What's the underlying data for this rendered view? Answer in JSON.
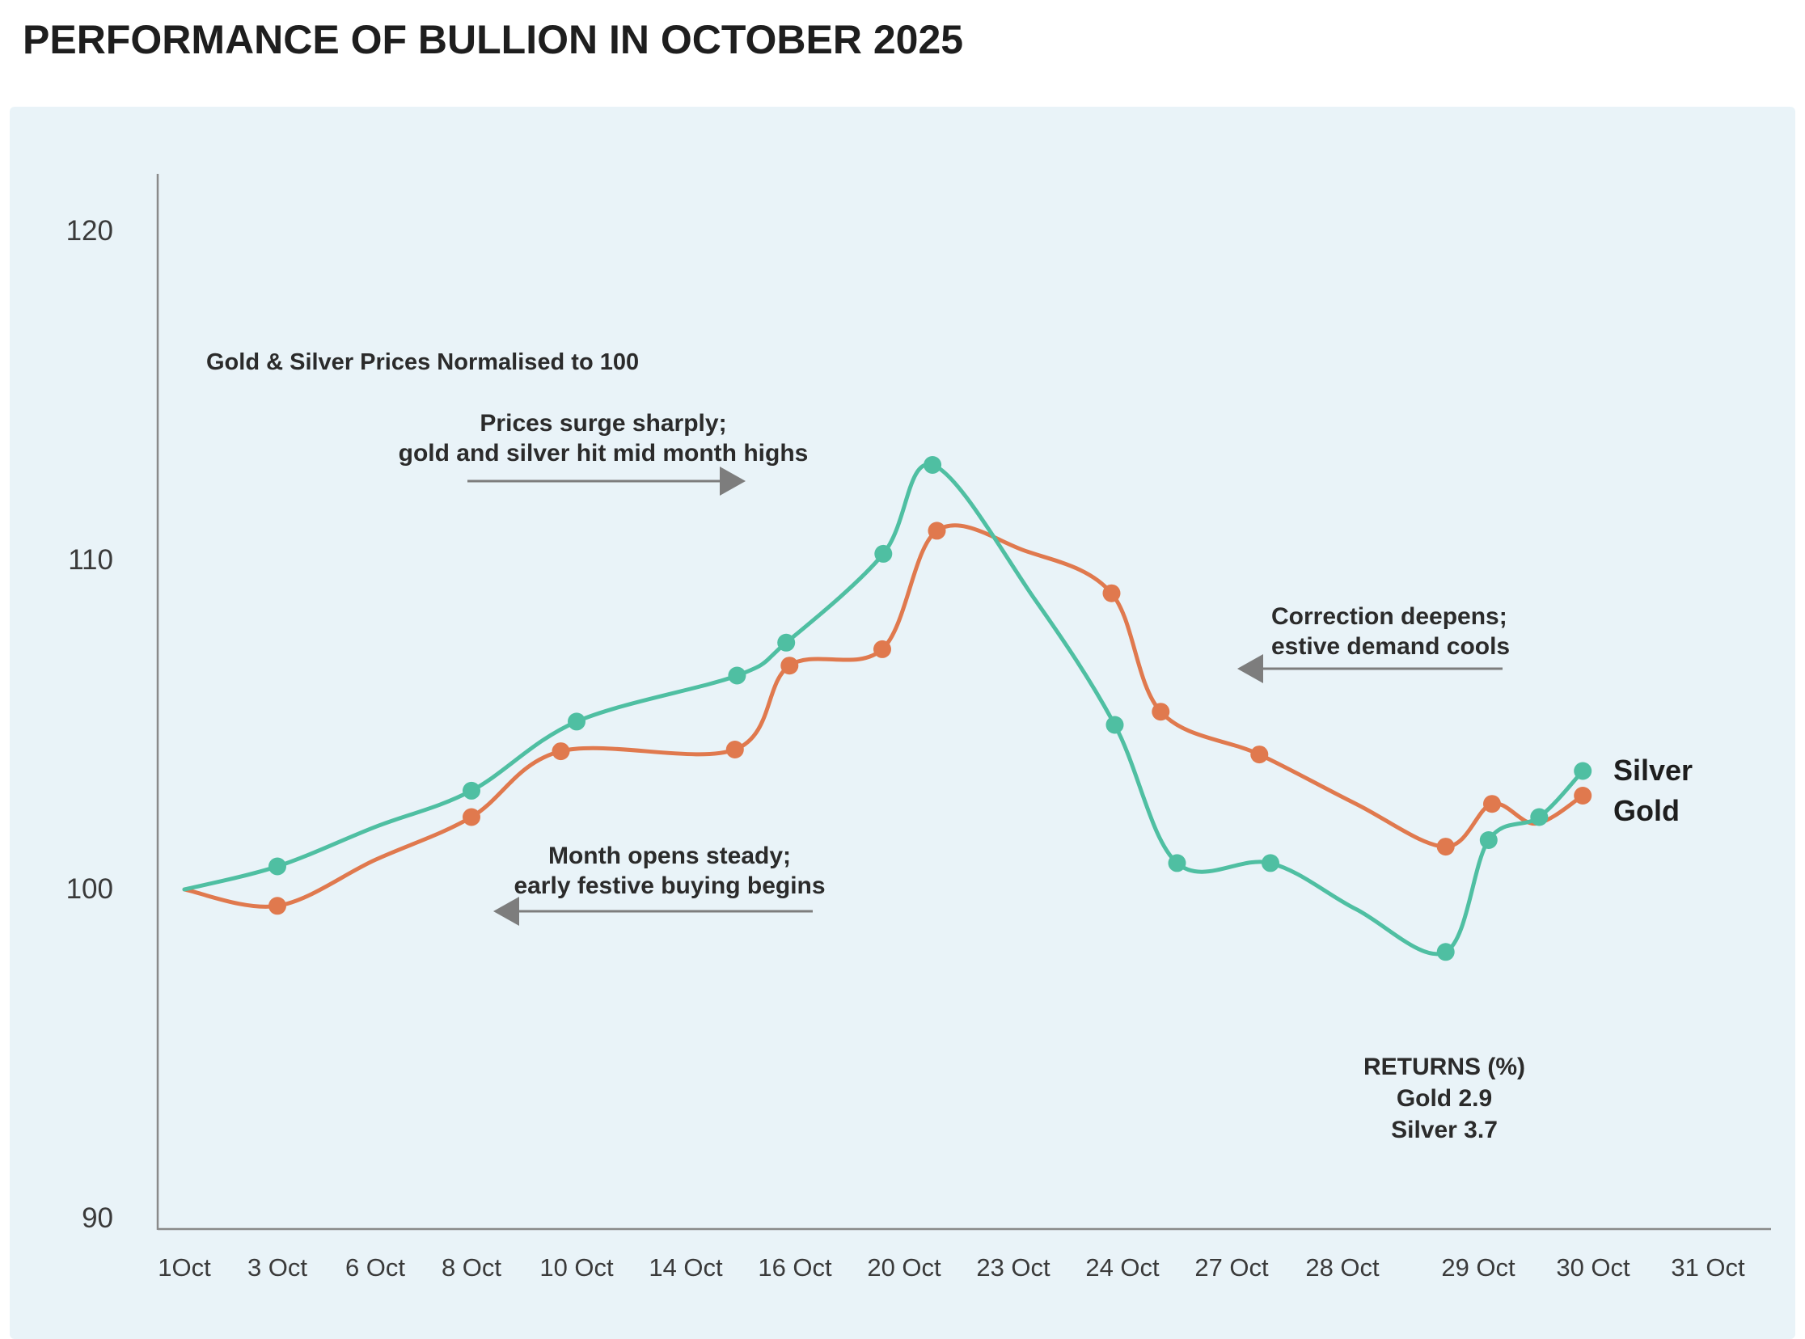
{
  "title": "PERFORMANCE OF BULLION IN OCTOBER 2025",
  "chart_data": {
    "type": "line",
    "note": "Gold & Silver Prices Normalised to 100",
    "x_unit": "category slot (0 = 1Oct ... 14 = 31 Oct); fractional slots are intra-period dates",
    "x_categories": [
      "1Oct",
      "3 Oct",
      "6 Oct",
      "8 Oct",
      "10 Oct",
      "14 Oct",
      "16 Oct",
      "20 Oct",
      "23 Oct",
      "24 Oct",
      "27 Oct",
      "28 Oct",
      "29 Oct",
      "30 Oct",
      "31 Oct"
    ],
    "y_ticks": [
      120,
      110,
      100,
      90
    ],
    "ylim": [
      89.7,
      121.5
    ],
    "grid": false,
    "legend_position": "line-end labels at right",
    "series": [
      {
        "name": "Gold",
        "color": "#e0794e",
        "return_pct": 2.9,
        "points": [
          {
            "x": 0,
            "y": 100.0,
            "marker": false
          },
          {
            "x": 1,
            "y": 99.5,
            "marker": true
          },
          {
            "x": 2,
            "y": 100.9,
            "marker": false
          },
          {
            "x": 3,
            "y": 102.2,
            "marker": true
          },
          {
            "x": 3.85,
            "y": 104.2,
            "marker": true
          },
          {
            "x": 5.45,
            "y": 104.25,
            "marker": true
          },
          {
            "x": 5.95,
            "y": 106.8,
            "marker": true
          },
          {
            "x": 6.8,
            "y": 107.3,
            "marker": true
          },
          {
            "x": 7.3,
            "y": 110.9,
            "marker": true
          },
          {
            "x": 8.1,
            "y": 110.3,
            "marker": false
          },
          {
            "x": 8.9,
            "y": 109.0,
            "marker": true
          },
          {
            "x": 9.35,
            "y": 105.4,
            "marker": true
          },
          {
            "x": 10.25,
            "y": 104.1,
            "marker": true
          },
          {
            "x": 11.1,
            "y": 102.6,
            "marker": false
          },
          {
            "x": 11.76,
            "y": 101.3,
            "marker": true
          },
          {
            "x": 12.12,
            "y": 102.6,
            "marker": true
          },
          {
            "x": 12.5,
            "y": 102.0,
            "marker": false
          },
          {
            "x": 12.91,
            "y": 102.85,
            "marker": true
          }
        ]
      },
      {
        "name": "Silver",
        "color": "#4fbfa2",
        "return_pct": 3.7,
        "points": [
          {
            "x": 0,
            "y": 100.0,
            "marker": false
          },
          {
            "x": 1,
            "y": 100.7,
            "marker": true
          },
          {
            "x": 2,
            "y": 101.9,
            "marker": false
          },
          {
            "x": 3,
            "y": 103.0,
            "marker": true
          },
          {
            "x": 4,
            "y": 105.1,
            "marker": true
          },
          {
            "x": 5.47,
            "y": 106.5,
            "marker": true
          },
          {
            "x": 5.92,
            "y": 107.5,
            "marker": true
          },
          {
            "x": 6.81,
            "y": 110.2,
            "marker": true
          },
          {
            "x": 7.26,
            "y": 112.9,
            "marker": true
          },
          {
            "x": 8.2,
            "y": 108.8,
            "marker": false
          },
          {
            "x": 8.93,
            "y": 105.0,
            "marker": true
          },
          {
            "x": 9.5,
            "y": 100.8,
            "marker": true
          },
          {
            "x": 10.35,
            "y": 100.8,
            "marker": true
          },
          {
            "x": 11.1,
            "y": 99.4,
            "marker": false
          },
          {
            "x": 11.76,
            "y": 98.1,
            "marker": true
          },
          {
            "x": 12.09,
            "y": 101.5,
            "marker": true
          },
          {
            "x": 12.53,
            "y": 102.2,
            "marker": true
          },
          {
            "x": 12.91,
            "y": 103.6,
            "marker": true
          }
        ]
      }
    ],
    "annotations": [
      {
        "id": "surge",
        "line1": "Prices surge sharply;",
        "line2": "gold and silver hit mid month highs",
        "arrow_direction": "right"
      },
      {
        "id": "open",
        "line1": "Month opens steady;",
        "line2": "early festive buying begins",
        "arrow_direction": "left"
      },
      {
        "id": "correction",
        "line1": "Correction deepens;",
        "line2": "estive demand cools",
        "arrow_direction": "left"
      }
    ],
    "returns_block": {
      "heading": "RETURNS (%)",
      "gold_line": "Gold 2.9",
      "silver_line": "Silver 3.7"
    },
    "colors": {
      "panel_background": "#e9f3f8",
      "silver": "#4fbfa2",
      "gold": "#e0794e",
      "axis": "#8a8a8a",
      "arrow": "#7d7d7d",
      "text": "#2b2b2b",
      "title": "#1e1e1e"
    },
    "end_labels": {
      "silver": "Silver",
      "gold": "Gold"
    }
  }
}
